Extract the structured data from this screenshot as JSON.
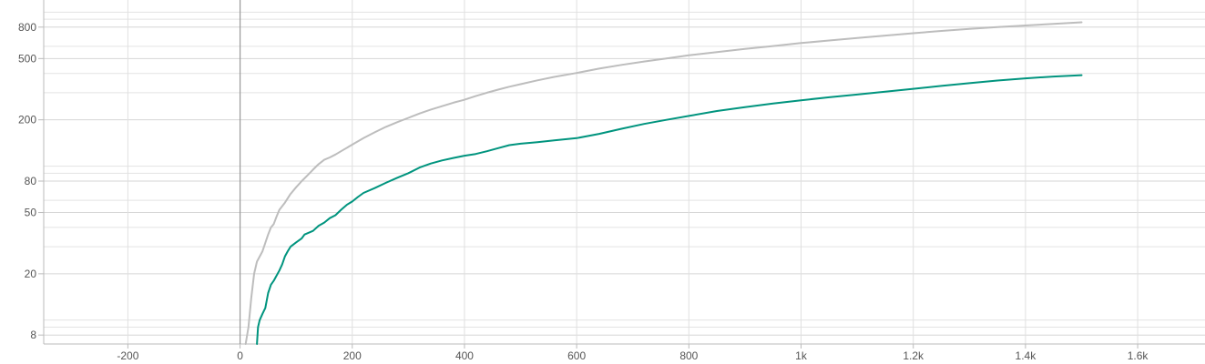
{
  "chart_data": {
    "type": "line",
    "title": "",
    "xlabel": "",
    "ylabel": "",
    "y_scale": "log",
    "grid": true,
    "xlim": [
      -350,
      1720
    ],
    "ylim": [
      7,
      1200
    ],
    "x_ticks": [
      {
        "value": -200,
        "label": "-200"
      },
      {
        "value": 0,
        "label": "0"
      },
      {
        "value": 200,
        "label": "200"
      },
      {
        "value": 400,
        "label": "400"
      },
      {
        "value": 600,
        "label": "600"
      },
      {
        "value": 800,
        "label": "800"
      },
      {
        "value": 1000,
        "label": "1k"
      },
      {
        "value": 1200,
        "label": "1.2k"
      },
      {
        "value": 1400,
        "label": "1.4k"
      },
      {
        "value": 1600,
        "label": "1.6k"
      }
    ],
    "y_ticks": [
      {
        "value": 8,
        "label": "8"
      },
      {
        "value": 20,
        "label": "20"
      },
      {
        "value": 50,
        "label": "50"
      },
      {
        "value": 80,
        "label": "80"
      },
      {
        "value": 200,
        "label": "200"
      },
      {
        "value": 500,
        "label": "500"
      },
      {
        "value": 800,
        "label": "800"
      }
    ],
    "y_minor_gridlines": [
      9,
      10,
      30,
      40,
      60,
      90,
      100,
      300,
      400,
      600,
      900,
      1000
    ],
    "x_zero_line": 0,
    "series": [
      {
        "color": "#bdbdbd",
        "x": [
          10,
          15,
          20,
          25,
          30,
          40,
          50,
          55,
          60,
          65,
          70,
          80,
          90,
          100,
          110,
          120,
          130,
          140,
          150,
          160,
          170,
          180,
          200,
          220,
          240,
          260,
          280,
          300,
          320,
          340,
          360,
          380,
          400,
          420,
          440,
          460,
          480,
          500,
          530,
          560,
          600,
          640,
          680,
          720,
          760,
          800,
          850,
          900,
          950,
          1000,
          1050,
          1100,
          1150,
          1200,
          1250,
          1300,
          1350,
          1400,
          1450,
          1500
        ],
        "values": [
          7,
          9,
          14,
          20,
          24,
          28,
          36,
          40,
          42,
          47,
          52,
          58,
          66,
          73,
          80,
          87,
          95,
          103,
          110,
          114,
          119,
          125,
          138,
          152,
          166,
          180,
          193,
          206,
          220,
          233,
          245,
          258,
          270,
          285,
          300,
          314,
          328,
          341,
          361,
          380,
          403,
          430,
          455,
          478,
          500,
          525,
          550,
          578,
          603,
          630,
          655,
          680,
          705,
          730,
          755,
          780,
          800,
          820,
          840,
          860
        ]
      },
      {
        "color": "#00947e",
        "x": [
          30,
          32,
          35,
          40,
          45,
          50,
          55,
          60,
          70,
          75,
          80,
          85,
          90,
          100,
          110,
          115,
          130,
          140,
          150,
          160,
          170,
          180,
          190,
          200,
          210,
          220,
          240,
          260,
          280,
          300,
          320,
          340,
          360,
          380,
          400,
          420,
          440,
          460,
          480,
          500,
          530,
          560,
          600,
          640,
          680,
          720,
          760,
          800,
          850,
          900,
          950,
          1000,
          1050,
          1100,
          1150,
          1200,
          1250,
          1300,
          1350,
          1400,
          1450,
          1500
        ],
        "values": [
          7,
          9,
          10,
          11,
          12,
          15,
          17,
          18,
          21,
          23,
          26,
          28,
          30,
          32,
          34,
          36,
          38,
          41,
          43,
          46,
          48,
          52,
          56,
          59,
          63,
          67,
          72,
          78,
          84,
          90,
          98,
          104,
          109,
          113,
          117,
          120,
          125,
          131,
          137,
          140,
          143,
          147,
          152,
          162,
          175,
          188,
          200,
          212,
          228,
          242,
          255,
          268,
          280,
          292,
          305,
          318,
          332,
          346,
          360,
          372,
          382,
          390
        ]
      }
    ]
  }
}
